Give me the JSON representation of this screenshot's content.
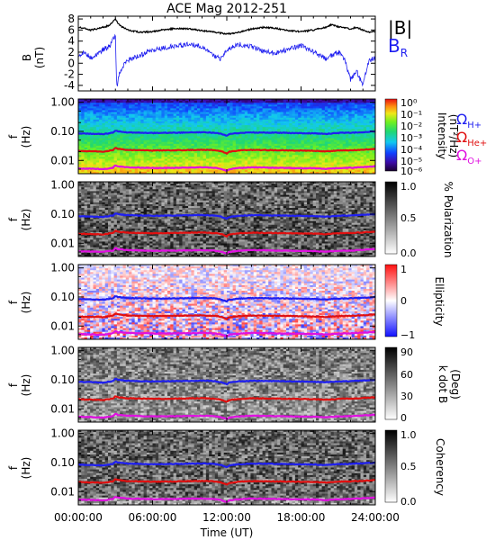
{
  "chart_data": {
    "type": "line",
    "title": "ACE Mag 2012-251",
    "xlabel": "Time (UT)",
    "x_ticks": [
      "00:00:00",
      "06:00:00",
      "12:00:00",
      "18:00:00",
      "24:00:00"
    ],
    "x_tick_hours": [
      0,
      6,
      12,
      18,
      24
    ],
    "xlim_hours": [
      0,
      24
    ],
    "panels": [
      {
        "id": "field",
        "type": "line",
        "ylabel": "B",
        "yunit": "(nT)",
        "ylim": [
          -5,
          8.5
        ],
        "yticks": [
          -4,
          -2,
          0,
          2,
          4,
          6,
          8
        ],
        "legend": [
          {
            "label": "|B|",
            "color": "#000000"
          },
          {
            "label": "B",
            "sub": "R",
            "color": "#1f1ff0"
          }
        ],
        "series": [
          {
            "name": "|B|",
            "color": "#000000",
            "x": [
              0,
              0.5,
              1,
              1.5,
              2,
              2.5,
              2.8,
              3,
              3.2,
              3.5,
              4,
              5,
              6,
              7,
              8,
              9,
              10,
              11,
              12,
              13,
              14,
              15,
              16,
              17,
              18,
              19,
              20,
              20.5,
              21,
              22,
              22.5,
              23,
              23.5,
              24
            ],
            "y": [
              6.5,
              6.3,
              6.0,
              6.2,
              6.5,
              6.8,
              7.5,
              8.0,
              7.3,
              6.6,
              6.0,
              5.6,
              5.7,
              6.1,
              6.3,
              6.2,
              5.9,
              5.6,
              5.3,
              5.6,
              6.2,
              6.5,
              6.3,
              5.9,
              5.7,
              6.0,
              6.5,
              7.0,
              6.6,
              6.2,
              6.5,
              6.0,
              5.6,
              5.8
            ]
          },
          {
            "name": "B_R",
            "color": "#1f1ff0",
            "x": [
              0,
              0.5,
              1,
              1.5,
              2,
              2.5,
              2.8,
              3,
              3.1,
              3.3,
              3.6,
              4,
              4.5,
              5,
              6,
              7,
              8,
              9,
              10,
              11,
              11.5,
              12,
              13,
              14,
              15,
              16,
              17,
              18,
              19,
              20,
              20.5,
              21,
              21.5,
              22,
              22.5,
              23,
              23.5,
              24
            ],
            "y": [
              1.2,
              2.0,
              1.0,
              1.6,
              2.5,
              3.0,
              4.2,
              5.0,
              -4.5,
              -2.0,
              -0.5,
              0.5,
              1.0,
              1.5,
              2.3,
              2.8,
              3.2,
              3.5,
              3.0,
              1.2,
              0.8,
              2.5,
              3.4,
              3.0,
              2.2,
              1.8,
              2.6,
              3.2,
              2.0,
              0.8,
              1.5,
              2.0,
              0.8,
              -3.0,
              -1.5,
              -4.0,
              0.5,
              1.0
            ]
          }
        ]
      },
      {
        "id": "intensity",
        "type": "heatmap",
        "ylabel": "f",
        "yunit": "(Hz)",
        "yticks": [
          "1.00",
          "0.10",
          "0.01"
        ],
        "colorbar": {
          "label": "Intensity",
          "unit": "(nT²/Hz)",
          "ticks": [
            "10⁰",
            "10⁻¹",
            "10⁻²",
            "10⁻³",
            "10⁻⁴",
            "10⁻⁵",
            "10⁻⁶"
          ]
        },
        "cyclotron_legend": [
          {
            "label": "Ω",
            "sub": "H+",
            "color": "#1f1ff0"
          },
          {
            "label": "Ω",
            "sub": "He+",
            "color": "#e01010"
          },
          {
            "label": "Ω",
            "sub": "O+",
            "color": "#e010e0"
          }
        ]
      },
      {
        "id": "polarization",
        "type": "heatmap",
        "ylabel": "f",
        "yunit": "(Hz)",
        "yticks": [
          "1.00",
          "0.10",
          "0.01"
        ],
        "colorbar": {
          "label": "% Polarization",
          "unit": "",
          "ticks": [
            "1.0",
            "0.5",
            "0.0"
          ]
        }
      },
      {
        "id": "ellipticity",
        "type": "heatmap",
        "ylabel": "f",
        "yunit": "(Hz)",
        "yticks": [
          "1.00",
          "0.10",
          "0.01"
        ],
        "colorbar": {
          "label": "Ellipticity",
          "unit": "",
          "ticks": [
            "1",
            "0",
            "−1"
          ]
        }
      },
      {
        "id": "kdotb",
        "type": "heatmap",
        "ylabel": "f",
        "yunit": "(Hz)",
        "yticks": [
          "1.00",
          "0.10",
          "0.01"
        ],
        "colorbar": {
          "label": "k dot B",
          "unit": "(Deg)",
          "ticks": [
            "90",
            "60",
            "30",
            "0"
          ]
        }
      },
      {
        "id": "coherency",
        "type": "heatmap",
        "ylabel": "f",
        "yunit": "(Hz)",
        "yticks": [
          "1.00",
          "0.10",
          "0.01"
        ],
        "colorbar": {
          "label": "Coherency",
          "unit": "",
          "ticks": [
            "1.0",
            "0.5",
            "0.0"
          ]
        }
      }
    ],
    "cyclotron_lines": [
      {
        "name": "H+",
        "color": "#1f1ff0",
        "x": [
          0,
          1,
          2,
          2.8,
          3,
          3.2,
          4,
          6,
          8,
          10,
          11,
          11.5,
          12,
          12.2,
          13,
          14,
          16,
          18,
          19,
          20,
          21,
          22,
          23,
          24
        ],
        "y": [
          0.085,
          0.083,
          0.08,
          0.09,
          0.108,
          0.1,
          0.092,
          0.088,
          0.09,
          0.093,
          0.09,
          0.083,
          0.07,
          0.08,
          0.088,
          0.092,
          0.09,
          0.087,
          0.086,
          0.082,
          0.088,
          0.09,
          0.094,
          0.1
        ]
      },
      {
        "name": "He+",
        "color": "#e01010",
        "x": [
          0,
          1,
          2,
          2.8,
          3,
          3.2,
          4,
          6,
          8,
          10,
          11,
          11.5,
          12,
          12.2,
          13,
          14,
          16,
          18,
          19,
          20,
          21,
          22,
          23,
          24
        ],
        "y": [
          0.0213,
          0.0208,
          0.02,
          0.0225,
          0.027,
          0.025,
          0.023,
          0.022,
          0.0225,
          0.0233,
          0.0225,
          0.021,
          0.0175,
          0.02,
          0.022,
          0.023,
          0.0225,
          0.0218,
          0.0215,
          0.0205,
          0.022,
          0.0225,
          0.0235,
          0.025
        ]
      },
      {
        "name": "O+",
        "color": "#e010e0",
        "x": [
          0,
          1,
          2,
          2.8,
          3,
          3.2,
          4,
          6,
          8,
          10,
          11,
          11.5,
          12,
          12.2,
          13,
          14,
          16,
          18,
          19,
          20,
          21,
          22,
          23,
          24
        ],
        "y": [
          0.0053,
          0.0052,
          0.005,
          0.0056,
          0.0068,
          0.0062,
          0.0058,
          0.0055,
          0.0056,
          0.0058,
          0.0056,
          0.0052,
          0.0044,
          0.005,
          0.0055,
          0.0058,
          0.0056,
          0.0054,
          0.0054,
          0.0051,
          0.0055,
          0.0056,
          0.0059,
          0.0063
        ]
      }
    ]
  }
}
